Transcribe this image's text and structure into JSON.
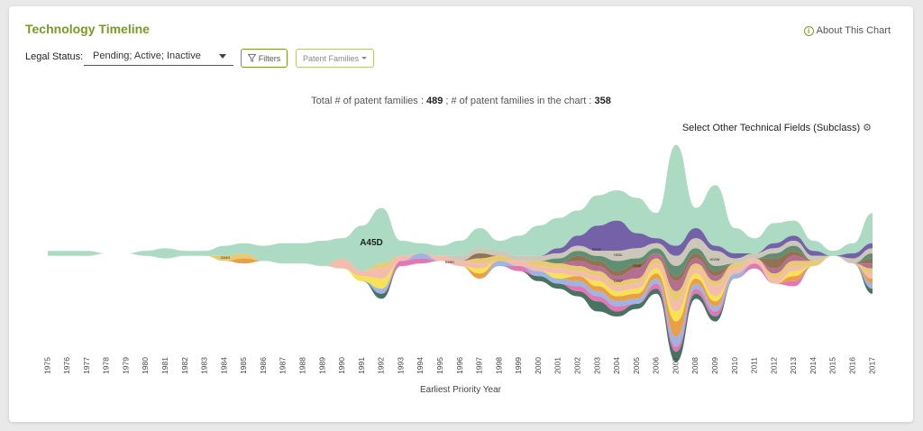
{
  "header": {
    "title": "Technology Timeline",
    "about_label": "About This Chart"
  },
  "filters": {
    "legal_status_label": "Legal Status:",
    "legal_status_value": "Pending; Active; Inactive",
    "filters_button": "Filters",
    "families_button": "Patent Families"
  },
  "totals": {
    "prefix": "Total # of patent families : ",
    "total": "489",
    "middle": " ; # of patent families in the chart : ",
    "in_chart": "358"
  },
  "subclass_label": "Select Other Technical Fields (Subclass)",
  "colors": {
    "accent": "#7a9a27",
    "main_stream": "#a9d8bf",
    "purple": "#6b5aa3"
  },
  "chart_data": {
    "type": "area",
    "style": "streamgraph",
    "xlabel": "Earliest Priority Year",
    "years": [
      "1975",
      "1976",
      "1977",
      "1978",
      "1979",
      "1980",
      "1981",
      "1982",
      "1983",
      "1984",
      "1985",
      "1986",
      "1987",
      "1988",
      "1989",
      "1990",
      "1991",
      "1992",
      "1993",
      "1994",
      "1995",
      "1996",
      "1997",
      "1998",
      "1999",
      "2000",
      "2001",
      "2002",
      "2003",
      "2004",
      "2005",
      "2006",
      "2007",
      "2008",
      "2009",
      "2010",
      "2011",
      "2012",
      "2013",
      "2014",
      "2015",
      "2016",
      "2017"
    ],
    "stream_labels": [
      "A45D",
      "G04G",
      "B65D",
      "B01B",
      "H05L",
      "G06F",
      "D06P",
      "H04W"
    ],
    "series": [
      {
        "name": "A45D",
        "color": "#a9d8bf",
        "values": [
          1,
          1,
          1,
          0,
          0,
          1,
          2,
          1,
          1,
          2,
          2,
          3,
          4,
          4,
          5,
          4,
          9,
          11,
          3,
          2,
          2,
          3,
          4,
          2,
          4,
          6,
          6,
          5,
          6,
          6,
          7,
          5,
          20,
          4,
          12,
          5,
          3,
          4,
          3,
          2,
          1,
          2,
          6
        ]
      },
      {
        "name": "B01B",
        "color": "#6b5aa3",
        "values": [
          0,
          0,
          0,
          0,
          0,
          0,
          0,
          0,
          0,
          0,
          0,
          0,
          0,
          0,
          0,
          0,
          0,
          0,
          0,
          0,
          0,
          0,
          0,
          0,
          0,
          0,
          1,
          2,
          5,
          6,
          3,
          1,
          2,
          2,
          1,
          1,
          0,
          1,
          1,
          1,
          0,
          1,
          1
        ]
      },
      {
        "name": "G06F",
        "color": "#c9c4b4",
        "values": [
          0,
          0,
          0,
          0,
          0,
          0,
          0,
          0,
          0,
          0,
          0,
          0,
          0,
          0,
          0,
          0,
          0,
          0,
          0,
          0,
          0,
          1,
          1,
          1,
          1,
          1,
          1,
          1,
          1,
          2,
          2,
          1,
          2,
          2,
          3,
          1,
          1,
          1,
          1,
          1,
          0,
          1,
          1
        ]
      },
      {
        "name": "H05L",
        "color": "#55896a",
        "values": [
          0,
          0,
          0,
          0,
          0,
          0,
          0,
          0,
          0,
          0,
          0,
          0,
          0,
          0,
          0,
          0,
          0,
          0,
          0,
          0,
          0,
          0,
          0,
          0,
          0,
          0,
          1,
          1,
          1,
          2,
          1,
          1,
          2,
          1,
          1,
          0,
          0,
          1,
          1,
          0,
          0,
          0,
          1
        ]
      },
      {
        "name": "H04W",
        "color": "#8b6a4a",
        "values": [
          0,
          0,
          0,
          0,
          0,
          0,
          0,
          0,
          0,
          0,
          0,
          0,
          0,
          0,
          0,
          0,
          0,
          0,
          0,
          0,
          0,
          0,
          1,
          0,
          0,
          0,
          0,
          1,
          1,
          1,
          1,
          0,
          1,
          1,
          1,
          0,
          0,
          2,
          1,
          0,
          0,
          0,
          1
        ]
      },
      {
        "name": "D06P",
        "color": "#b2668a",
        "values": [
          0,
          0,
          0,
          0,
          0,
          0,
          0,
          0,
          0,
          0,
          0,
          0,
          0,
          0,
          0,
          0,
          0,
          0,
          0,
          0,
          0,
          0,
          0,
          0,
          0,
          0,
          0,
          1,
          1,
          1,
          2,
          1,
          2,
          1,
          1,
          0,
          0,
          1,
          1,
          0,
          0,
          0,
          1
        ]
      },
      {
        "name": "G04G",
        "color": "#e6c76a",
        "values": [
          0,
          0,
          0,
          0,
          0,
          0,
          0,
          0,
          0,
          1,
          1,
          0,
          0,
          0,
          0,
          0,
          0,
          1,
          0,
          0,
          0,
          0,
          1,
          1,
          0,
          1,
          1,
          1,
          1,
          1,
          1,
          1,
          2,
          1,
          1,
          1,
          0,
          1,
          1,
          1,
          0,
          0,
          1
        ]
      },
      {
        "name": "B65D",
        "color": "#f3b8a8",
        "values": [
          0,
          0,
          0,
          0,
          0,
          0,
          0,
          0,
          0,
          0,
          0,
          0,
          0,
          0,
          0,
          2,
          1,
          2,
          1,
          0,
          1,
          1,
          1,
          0,
          1,
          1,
          1,
          1,
          1,
          1,
          1,
          1,
          2,
          1,
          2,
          1,
          1,
          1,
          1,
          0,
          0,
          0,
          1
        ]
      },
      {
        "name": "",
        "color": "#f5e04a",
        "values": [
          0,
          0,
          0,
          0,
          0,
          0,
          0,
          0,
          0,
          0,
          0,
          0,
          0,
          0,
          0,
          0,
          1,
          2,
          0,
          0,
          0,
          0,
          1,
          0,
          0,
          0,
          1,
          0,
          1,
          1,
          1,
          1,
          2,
          1,
          1,
          0,
          0,
          0,
          1,
          0,
          0,
          0,
          0
        ]
      },
      {
        "name": "",
        "color": "#e89a3c",
        "values": [
          0,
          0,
          0,
          0,
          0,
          0,
          0,
          0,
          0,
          0,
          1,
          0,
          0,
          0,
          0,
          0,
          0,
          0,
          0,
          0,
          0,
          0,
          1,
          0,
          0,
          0,
          0,
          1,
          1,
          1,
          1,
          1,
          3,
          1,
          1,
          0,
          0,
          0,
          1,
          0,
          0,
          0,
          1
        ]
      },
      {
        "name": "",
        "color": "#9ab0e0",
        "values": [
          0,
          0,
          0,
          0,
          0,
          0,
          0,
          0,
          0,
          0,
          0,
          0,
          0,
          0,
          0,
          0,
          0,
          1,
          0,
          1,
          0,
          0,
          0,
          1,
          0,
          1,
          1,
          1,
          1,
          1,
          1,
          1,
          2,
          1,
          1,
          1,
          0,
          0,
          0,
          0,
          0,
          0,
          1
        ]
      },
      {
        "name": "",
        "color": "#e070b0",
        "values": [
          0,
          0,
          0,
          0,
          0,
          0,
          0,
          0,
          0,
          0,
          0,
          0,
          0,
          0,
          0,
          0,
          0,
          0,
          1,
          1,
          0,
          0,
          0,
          0,
          1,
          0,
          0,
          1,
          1,
          1,
          0,
          1,
          1,
          1,
          1,
          0,
          1,
          0,
          1,
          0,
          0,
          0,
          0
        ]
      },
      {
        "name": "",
        "color": "#3e6a5a",
        "values": [
          0,
          0,
          0,
          0,
          0,
          0,
          0,
          0,
          0,
          0,
          0,
          0,
          0,
          0,
          0,
          0,
          0,
          1,
          0,
          0,
          0,
          0,
          0,
          0,
          0,
          1,
          1,
          1,
          2,
          1,
          1,
          1,
          2,
          1,
          1,
          0,
          0,
          0,
          0,
          0,
          0,
          0,
          1
        ]
      }
    ]
  }
}
